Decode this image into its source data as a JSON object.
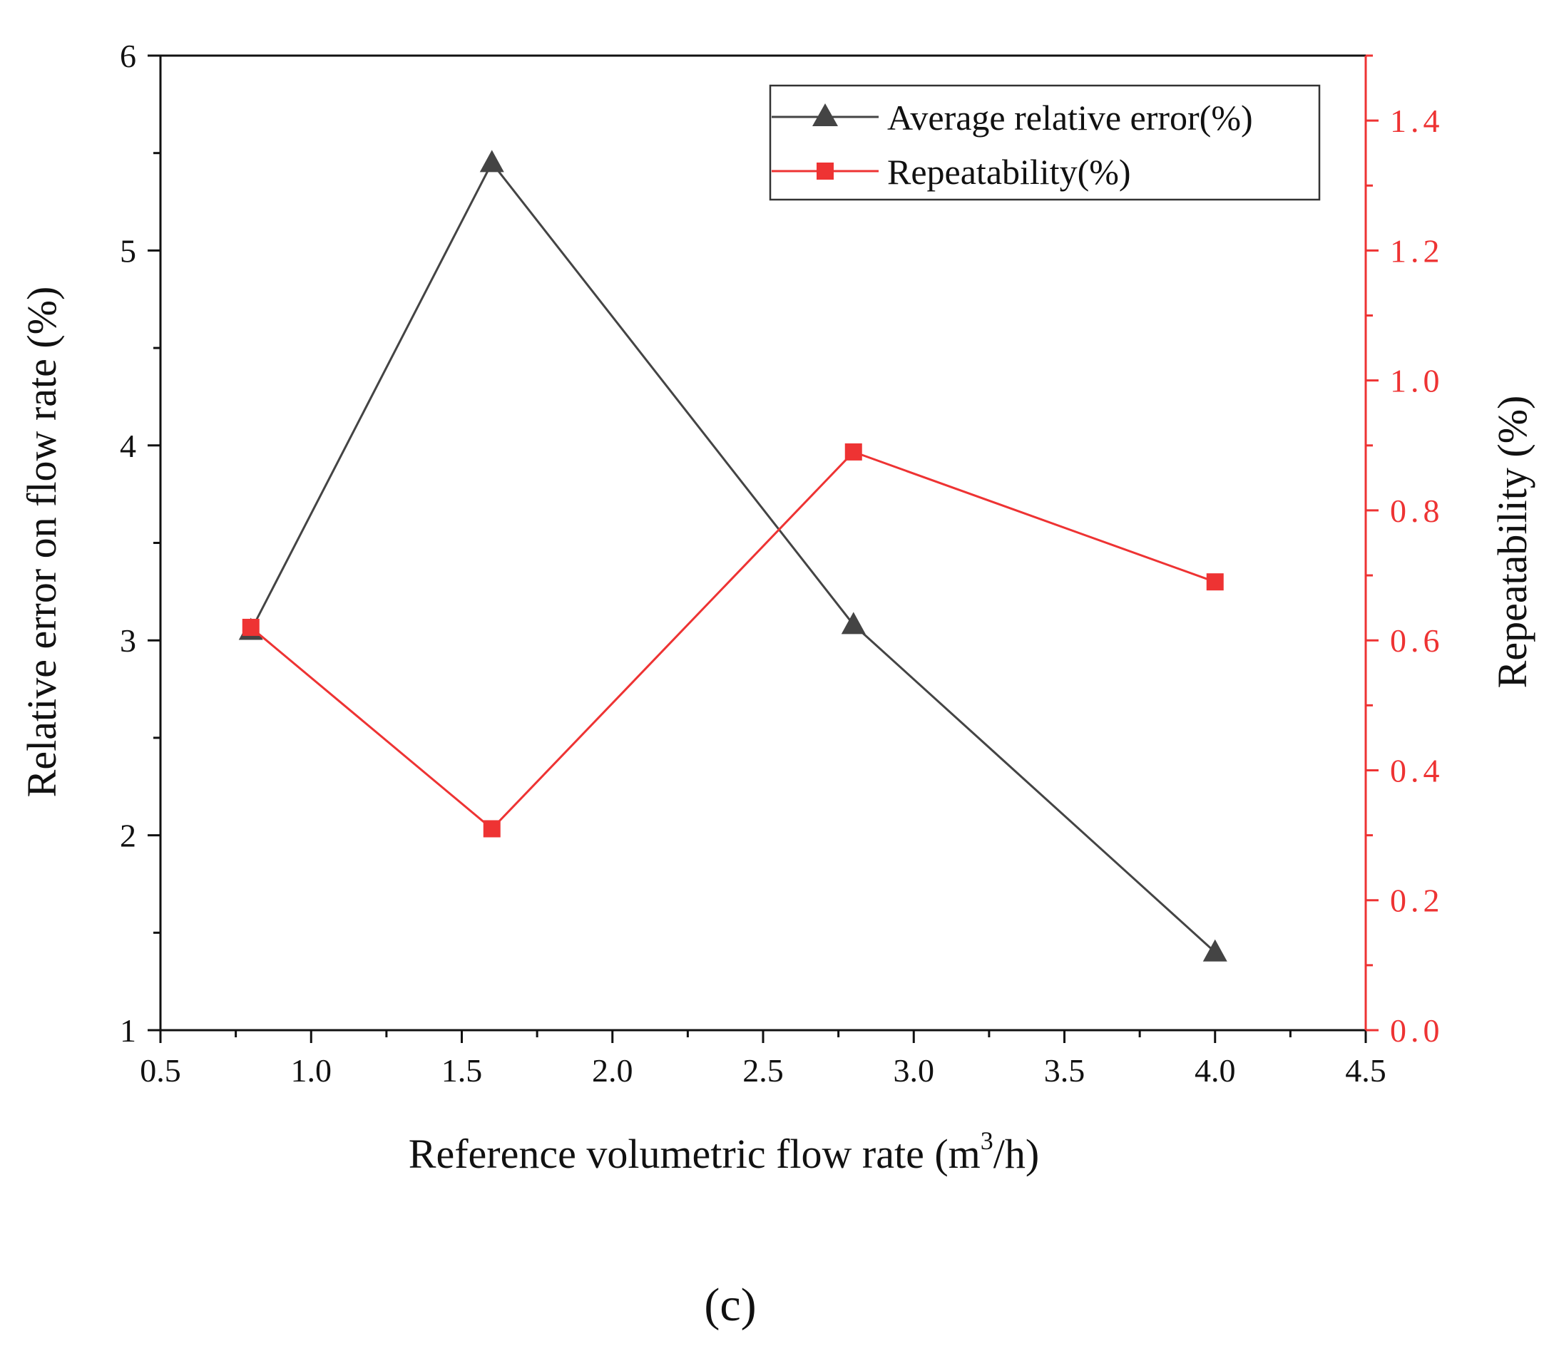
{
  "chart_data": {
    "type": "line",
    "panel_label": "(c)",
    "xlabel": {
      "main": "Reference volumetric flow rate (m",
      "sup": "3",
      "tail": "/h)"
    },
    "ylabel_left": "Relative error on flow rate (%)",
    "ylabel_right": "Repeatability (%)",
    "xlim": [
      0.5,
      4.5
    ],
    "ylim_left": [
      1,
      6
    ],
    "ylim_right": [
      0.0,
      1.5
    ],
    "x_ticks": [
      "0.5",
      "1.0",
      "1.5",
      "2.0",
      "2.5",
      "3.0",
      "3.5",
      "4.0",
      "4.5"
    ],
    "y_left_ticks": [
      "1",
      "2",
      "3",
      "4",
      "5",
      "6"
    ],
    "y_right_ticks": [
      "0.0",
      "0.2",
      "0.4",
      "0.6",
      "0.8",
      "1.0",
      "1.2",
      "1.4"
    ],
    "legend_position": "top-right",
    "grid": false,
    "series": [
      {
        "name": "Average relative error(%)",
        "axis": "left",
        "marker": "triangle",
        "color": "#444444",
        "x": [
          0.8,
          1.6,
          2.8,
          4.0
        ],
        "y": [
          3.05,
          5.45,
          3.08,
          1.4
        ]
      },
      {
        "name": "Repeatability(%)",
        "axis": "right",
        "marker": "square",
        "color": "#ee3333",
        "x": [
          0.8,
          1.6,
          2.8,
          4.0
        ],
        "y": [
          0.62,
          0.31,
          0.89,
          0.69
        ]
      }
    ]
  }
}
